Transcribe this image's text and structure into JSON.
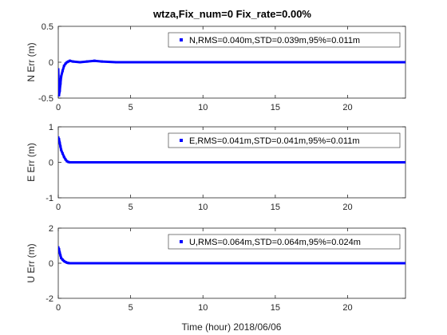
{
  "figure": {
    "title": "wtza,Fix_num=0 Fix_rate=0.00%",
    "xlabel": "Time (hour)  2018/06/06"
  },
  "chart_data": [
    {
      "type": "scatter",
      "ylabel": "N Err (m)",
      "xlim": [
        0,
        24
      ],
      "ylim": [
        -0.5,
        0.5
      ],
      "xticks": [
        0,
        5,
        10,
        15,
        20
      ],
      "yticks": [
        -0.5,
        0,
        0.5
      ],
      "grid": false,
      "legend_position": "top-right",
      "color": "#0000ff",
      "series": [
        {
          "name": "N,RMS=0.040m,STD=0.039m,95%=0.011m",
          "x": [
            0,
            0.05,
            0.1,
            0.15,
            0.2,
            0.3,
            0.4,
            0.5,
            0.6,
            0.7,
            0.8,
            1.0,
            1.5,
            2.0,
            2.5,
            3.0,
            4.0,
            6.0,
            8.0,
            10.0,
            12.0,
            14.0,
            16.0,
            18.0,
            20.0,
            22.0,
            24.0
          ],
          "y": [
            -0.1,
            -0.46,
            -0.4,
            -0.3,
            -0.2,
            -0.12,
            -0.05,
            -0.02,
            0.0,
            0.01,
            0.02,
            0.01,
            0.0,
            0.01,
            0.02,
            0.01,
            0.0,
            0.0,
            0.0,
            0.0,
            0.0,
            0.0,
            0.0,
            0.0,
            0.0,
            0.0,
            0.0
          ]
        }
      ]
    },
    {
      "type": "scatter",
      "ylabel": "E Err (m)",
      "xlim": [
        0,
        24
      ],
      "ylim": [
        -1,
        1
      ],
      "xticks": [
        0,
        5,
        10,
        15,
        20
      ],
      "yticks": [
        -1,
        0,
        1
      ],
      "grid": false,
      "legend_position": "top-right",
      "color": "#0000ff",
      "series": [
        {
          "name": "E,RMS=0.041m,STD=0.041m,95%=0.011m",
          "x": [
            0,
            0.05,
            0.1,
            0.15,
            0.2,
            0.3,
            0.4,
            0.5,
            0.6,
            0.7,
            0.8,
            1.0,
            1.5,
            2.0,
            3.0,
            4.0,
            6.0,
            8.0,
            10.0,
            12.0,
            14.0,
            16.0,
            18.0,
            20.0,
            22.0,
            24.0
          ],
          "y": [
            0.7,
            0.65,
            0.55,
            0.45,
            0.35,
            0.25,
            0.15,
            0.08,
            0.03,
            0.01,
            0.0,
            0.0,
            0.0,
            0.0,
            0.0,
            0.0,
            0.0,
            0.0,
            0.0,
            0.0,
            0.0,
            0.0,
            0.0,
            0.0,
            0.0,
            0.0
          ]
        }
      ]
    },
    {
      "type": "scatter",
      "ylabel": "U Err (m)",
      "xlim": [
        0,
        24
      ],
      "ylim": [
        -2,
        2
      ],
      "xticks": [
        0,
        5,
        10,
        15,
        20
      ],
      "yticks": [
        -2,
        0,
        2
      ],
      "grid": false,
      "legend_position": "top-right",
      "color": "#0000ff",
      "series": [
        {
          "name": "U,RMS=0.064m,STD=0.064m,95%=0.024m",
          "x": [
            0,
            0.05,
            0.1,
            0.15,
            0.2,
            0.3,
            0.4,
            0.5,
            0.6,
            0.7,
            0.8,
            1.0,
            1.5,
            2.0,
            3.0,
            4.0,
            6.0,
            8.0,
            10.0,
            12.0,
            14.0,
            16.0,
            18.0,
            20.0,
            22.0,
            24.0
          ],
          "y": [
            0.9,
            0.8,
            0.6,
            0.45,
            0.3,
            0.2,
            0.12,
            0.07,
            0.03,
            0.01,
            0.0,
            0.0,
            0.0,
            0.0,
            0.0,
            0.0,
            0.0,
            0.0,
            0.0,
            0.0,
            0.0,
            0.0,
            0.0,
            0.0,
            0.0,
            0.0
          ]
        }
      ]
    }
  ]
}
